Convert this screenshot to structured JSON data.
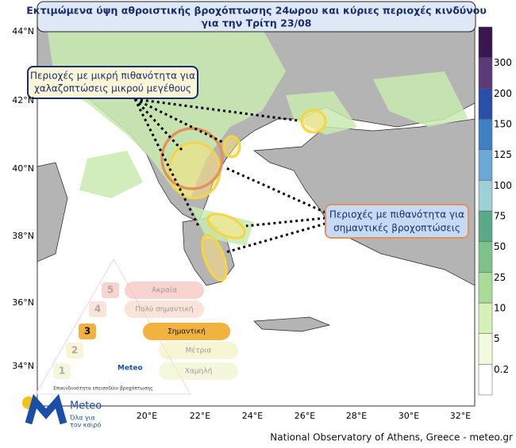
{
  "title": {
    "line1": "Εκτιμώμενα ύψη αθροιστικής βροχόπτωσης 24ωρου και κύριες περιοχές κινδύνου",
    "line2": "για την Τρίτη 23/08"
  },
  "annotations": {
    "hail": {
      "line1": "Περιοχές με μικρή πιθανότητα για",
      "line2": "χαλαζοπτώσεις μικρού μεγέθους"
    },
    "rain": {
      "line1": "Περιοχές με πιθανότητα για",
      "line2": "σημαντικές βροχοπτώσεις"
    }
  },
  "lat_labels": [
    "44°N",
    "42°N",
    "40°N",
    "38°N",
    "36°N",
    "34°N"
  ],
  "lon_labels": [
    "20°E",
    "22°E",
    "24°E",
    "26°E",
    "28°E",
    "30°E",
    "32°E"
  ],
  "colorbar": {
    "labels": [
      "0.2",
      "5",
      "10",
      "25",
      "50",
      "75",
      "100",
      "125",
      "150",
      "200",
      "300"
    ],
    "colors": [
      "#ffffff",
      "#f1fadc",
      "#d5f0b8",
      "#a9dc98",
      "#7cc28a",
      "#5aa98a",
      "#9fd0d8",
      "#6ba8d6",
      "#3f7fc4",
      "#2a4fa8",
      "#5c3a78",
      "#3a1650"
    ]
  },
  "risk": {
    "levels": [
      {
        "num": "5",
        "label": "Ακραία",
        "color": "#f4b6b0"
      },
      {
        "num": "4",
        "label": "Πολύ σημαντική",
        "color": "#f6d2c2"
      },
      {
        "num": "3",
        "label": "Σημαντική",
        "color": "#f2b23e"
      },
      {
        "num": "2",
        "label": "Μέτρια",
        "color": "#f3efb8"
      },
      {
        "num": "1",
        "label": "Χαμηλή",
        "color": "#eef2c6"
      }
    ],
    "caption": "Επικινδυνότητα επεισοδίου βροχόπτωσης",
    "brand": "Meteo"
  },
  "logo": {
    "name": "Meteo",
    "line1": "Όλα για",
    "line2": "τον καιρό"
  },
  "footer": "National Observatory of Athens, Greece - meteo.gr"
}
